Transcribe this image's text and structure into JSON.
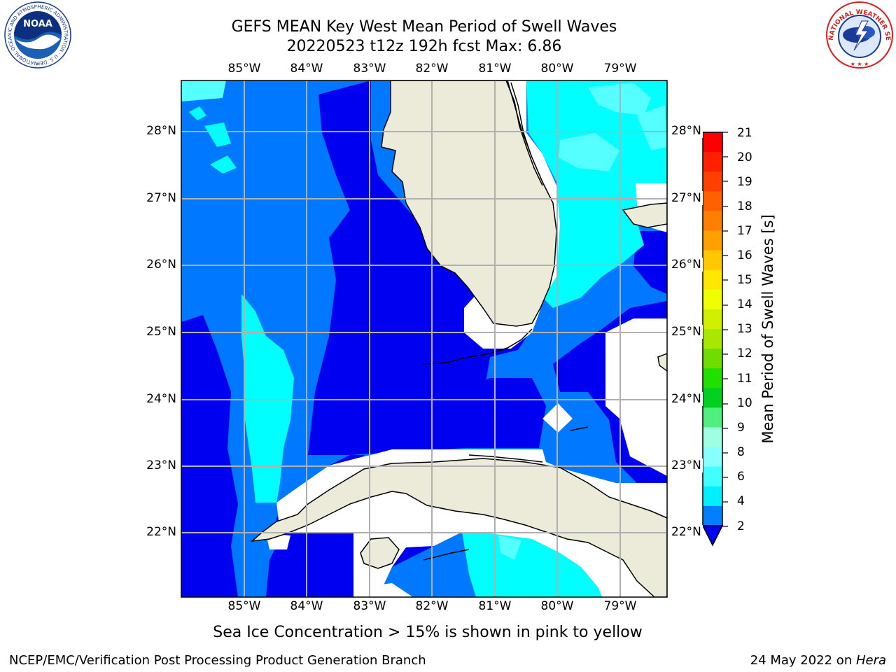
{
  "title": {
    "line1": "GEFS MEAN Key West Mean Period of Swell Waves",
    "line2": "20220523 t12z 192h fcst   Max: 6.86"
  },
  "map": {
    "lon_labels": [
      "85°W",
      "84°W",
      "83°W",
      "82°W",
      "81°W",
      "80°W",
      "79°W"
    ],
    "lat_labels": [
      "28°N",
      "27°N",
      "26°N",
      "25°N",
      "24°N",
      "23°N",
      "22°N"
    ],
    "colors": {
      "band_2_4": "#0000f0",
      "band_4_6": "#0078ff",
      "band_6_8": "#00ffff",
      "band_8_10": "#55ffff",
      "land": "#ecebd9",
      "grid": "#b0b0b0"
    }
  },
  "colorbar": {
    "title": "Mean Period of Swell Waves [s]",
    "ticks": [
      "21",
      "20",
      "19",
      "18",
      "17",
      "16",
      "15",
      "14",
      "13",
      "12",
      "11",
      "10",
      "9",
      "8",
      "6",
      "4",
      "2"
    ],
    "colors": [
      "#ff0000",
      "#ff2000",
      "#ff4000",
      "#ff6000",
      "#ff8000",
      "#ffa000",
      "#ffc800",
      "#ffe800",
      "#f0ff00",
      "#d0f000",
      "#a8e800",
      "#70dd00",
      "#20e000",
      "#00d020",
      "#50f080",
      "#a0ffe0",
      "#88ffff",
      "#40ffff",
      "#00f0ff",
      "#0080ff"
    ]
  },
  "subtitle": "Sea Ice Concentration > 15% is shown in pink to yellow",
  "footer": {
    "left": "NCEP/EMC/Verification Post Processing Product Generation Branch",
    "right_date": "24 May 2022 on ",
    "right_host": "Hera"
  },
  "logos": {
    "noaa_text": "NOAA",
    "noaa_ring": "NATIONAL OCEANIC AND ATMOSPHERIC ADMINISTRATION · U.S. DEPARTMENT OF COMMERCE",
    "nws_ring": "NATIONAL WEATHER SERVICE"
  }
}
